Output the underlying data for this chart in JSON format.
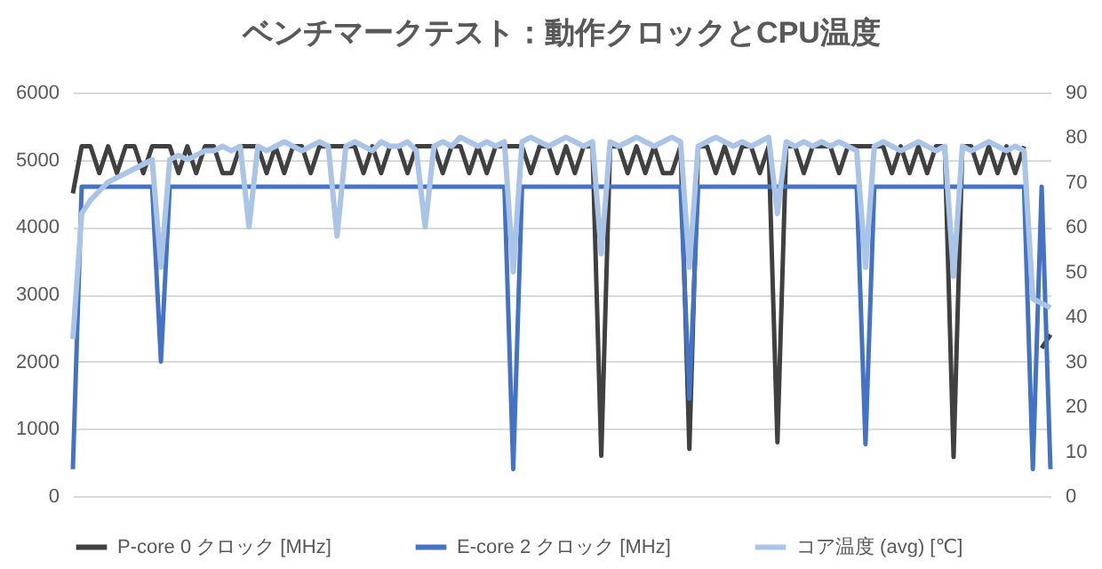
{
  "chart_data": {
    "type": "line",
    "title": "ベンチマークテスト：動作クロックとCPU温度",
    "categories": [
      null,
      null,
      null,
      null,
      null,
      null,
      null,
      null,
      null,
      null,
      null,
      null,
      null,
      null,
      null,
      null,
      null,
      null,
      null,
      null,
      null,
      null,
      null,
      null,
      null,
      null,
      null,
      null,
      null,
      null,
      null,
      null,
      null,
      null,
      null,
      null,
      null,
      null,
      null,
      null,
      null,
      null,
      null,
      null,
      null,
      null,
      null,
      null,
      null,
      null,
      null,
      null,
      null,
      null,
      null,
      null,
      null,
      null,
      null,
      null,
      null,
      null,
      null,
      null,
      null,
      null,
      null,
      null,
      null,
      null,
      null,
      null,
      null,
      null,
      null,
      null,
      null,
      null,
      null,
      null,
      null,
      null,
      null,
      null,
      null,
      null,
      null,
      null,
      null,
      null,
      null,
      null,
      null,
      null,
      null,
      null,
      null,
      null,
      null,
      null,
      null,
      null,
      null,
      null,
      null,
      null,
      null,
      null,
      null,
      null,
      null,
      null
    ],
    "series": [
      {
        "name": "P-core 0 クロック [MHz]",
        "color": "#404040",
        "values": [
          4500,
          5200,
          5200,
          4800,
          5200,
          4800,
          5200,
          5200,
          4800,
          5200,
          5200,
          5200,
          4800,
          5200,
          4800,
          5200,
          5200,
          4800,
          4800,
          5200,
          5200,
          5200,
          4800,
          5200,
          4800,
          5200,
          5200,
          4800,
          5200,
          5200,
          5200,
          5200,
          5200,
          4800,
          5200,
          4800,
          5200,
          5200,
          4800,
          5200,
          5200,
          5200,
          4800,
          5200,
          5200,
          4800,
          5200,
          4800,
          5200,
          5200,
          5200,
          5200,
          4800,
          5200,
          5200,
          4800,
          5200,
          4800,
          5200,
          5200,
          600,
          5200,
          5200,
          4800,
          5200,
          4800,
          5200,
          4800,
          4800,
          5200,
          700,
          5200,
          5200,
          4800,
          5200,
          4800,
          5200,
          5200,
          4800,
          5200,
          800,
          5200,
          5200,
          4800,
          5200,
          5200,
          5200,
          4800,
          5200,
          5200,
          5200,
          5200,
          5200,
          4800,
          5200,
          4800,
          5200,
          4800,
          5200,
          5200,
          580,
          5200,
          5200,
          4800,
          5200,
          4800,
          5200,
          4800,
          5200,
          null,
          2200,
          2400
        ]
      },
      {
        "name": "E-core 2 クロック [MHz]",
        "color": "#4472c4",
        "values": [
          400,
          4600,
          4600,
          4600,
          4600,
          4600,
          4600,
          4600,
          4600,
          4600,
          2000,
          4600,
          4600,
          4600,
          4600,
          4600,
          4600,
          4600,
          4600,
          4600,
          4600,
          4600,
          4600,
          4600,
          4600,
          4600,
          4600,
          4600,
          4600,
          4600,
          4600,
          4600,
          4600,
          4600,
          4600,
          4600,
          4600,
          4600,
          4600,
          4600,
          4600,
          4600,
          4600,
          4600,
          4600,
          4600,
          4600,
          4600,
          4600,
          4600,
          400,
          4600,
          4600,
          4600,
          4600,
          4600,
          4600,
          4600,
          4600,
          4600,
          4600,
          4600,
          4600,
          4600,
          4600,
          4600,
          4600,
          4600,
          4600,
          4600,
          1450,
          4600,
          4600,
          4600,
          4600,
          4600,
          4600,
          4600,
          4600,
          4600,
          4600,
          4600,
          4600,
          4600,
          4600,
          4600,
          4600,
          4600,
          4600,
          4600,
          770,
          4600,
          4600,
          4600,
          4600,
          4600,
          4600,
          4600,
          4600,
          4600,
          4600,
          4600,
          4600,
          4600,
          4600,
          4600,
          4600,
          4600,
          4600,
          400,
          4600,
          400
        ]
      },
      {
        "name": "コア温度 (avg) [℃]",
        "color": "#a9c4e6",
        "axis": "y2",
        "values": [
          35,
          63,
          66,
          68,
          70,
          71,
          72,
          73,
          74,
          75,
          51,
          75,
          76,
          75,
          76,
          77,
          77,
          78,
          77,
          78,
          60,
          78,
          77,
          78,
          79,
          78,
          77,
          78,
          79,
          78,
          58,
          78,
          79,
          78,
          77,
          79,
          78,
          78,
          79,
          77,
          60,
          78,
          79,
          78,
          80,
          79,
          78,
          79,
          78,
          79,
          50,
          79,
          80,
          79,
          78,
          79,
          80,
          79,
          78,
          79,
          54,
          79,
          78,
          79,
          80,
          79,
          78,
          79,
          80,
          79,
          51,
          78,
          79,
          80,
          79,
          78,
          79,
          78,
          79,
          80,
          63,
          79,
          78,
          79,
          78,
          79,
          78,
          79,
          78,
          77,
          51,
          78,
          79,
          78,
          77,
          78,
          79,
          78,
          77,
          78,
          49,
          78,
          77,
          78,
          79,
          78,
          77,
          78,
          77,
          44,
          43,
          42
        ]
      }
    ],
    "ylim": [
      0,
      6000
    ],
    "yticks": [
      0,
      1000,
      2000,
      3000,
      4000,
      5000,
      6000
    ],
    "y2lim": [
      0,
      90
    ],
    "y2ticks": [
      0,
      10,
      20,
      30,
      40,
      50,
      60,
      70,
      80,
      90
    ],
    "grid": "y",
    "legend": "bottom"
  }
}
